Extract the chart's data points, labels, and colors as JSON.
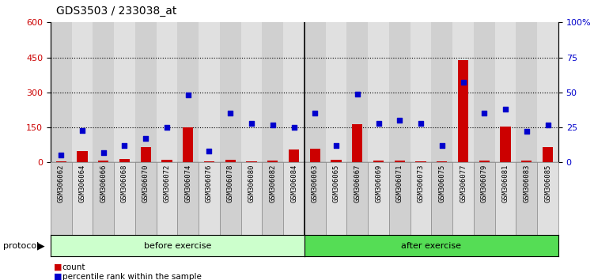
{
  "title": "GDS3503 / 233038_at",
  "samples": [
    "GSM306062",
    "GSM306064",
    "GSM306066",
    "GSM306068",
    "GSM306070",
    "GSM306072",
    "GSM306074",
    "GSM306076",
    "GSM306078",
    "GSM306080",
    "GSM306082",
    "GSM306084",
    "GSM306063",
    "GSM306065",
    "GSM306067",
    "GSM306069",
    "GSM306071",
    "GSM306073",
    "GSM306075",
    "GSM306077",
    "GSM306079",
    "GSM306081",
    "GSM306083",
    "GSM306085"
  ],
  "counts": [
    5,
    50,
    8,
    15,
    65,
    10,
    150,
    4,
    12,
    5,
    8,
    55,
    60,
    12,
    165,
    8,
    9,
    5,
    6,
    440,
    8,
    155,
    8,
    65
  ],
  "percentile": [
    5,
    23,
    7,
    12,
    17,
    25,
    48,
    8,
    35,
    28,
    27,
    25,
    35,
    12,
    49,
    28,
    30,
    28,
    12,
    57,
    35,
    38,
    22,
    27
  ],
  "before_count": 12,
  "after_count": 12,
  "before_label": "before exercise",
  "after_label": "after exercise",
  "protocol_label": "protocol",
  "left_ylim": [
    0,
    600
  ],
  "left_yticks": [
    0,
    150,
    300,
    450,
    600
  ],
  "right_ylim": [
    0,
    100
  ],
  "right_yticks": [
    0,
    25,
    50,
    75,
    100
  ],
  "right_yticklabels": [
    "0",
    "25",
    "50",
    "75",
    "100%"
  ],
  "bar_color": "#cc0000",
  "dot_color": "#0000cc",
  "before_bg": "#ccffcc",
  "after_bg": "#55dd55",
  "col_bg_even": "#d0d0d0",
  "col_bg_odd": "#e0e0e0",
  "tick_label_fontsize": 6.5,
  "legend_count_label": "count",
  "legend_pct_label": "percentile rank within the sample"
}
